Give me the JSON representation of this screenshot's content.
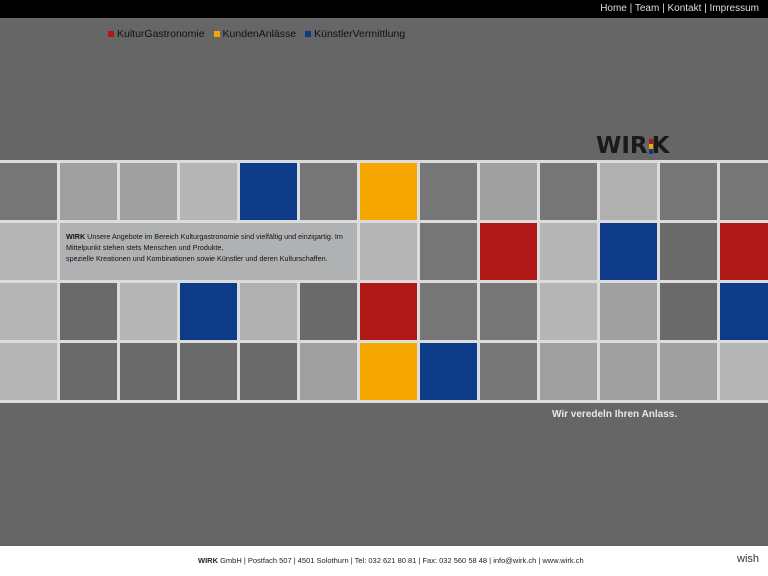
{
  "top_nav": {
    "items": [
      "Home",
      "Team",
      "Kontakt",
      "Impressum"
    ],
    "separator": " | "
  },
  "categories": [
    {
      "label": "KulturGastronomie",
      "color": "#b01818"
    },
    {
      "label": "KundenAnlässe",
      "color": "#f5a700"
    },
    {
      "label": "KünstlerVermittlung",
      "color": "#0d3b87"
    }
  ],
  "logo": {
    "text": "WIRK",
    "mark_colors": [
      "#b01818",
      "#f5a700",
      "#0d3b87"
    ]
  },
  "intro": {
    "brand": "WIRK",
    "line1": " Unsere Angebote im Bereich Kulturgastronomie sind vielfältig und einzigartig. Im Mittelpunkt stehen stets Menschen und Produkte,",
    "line2": "spezielle Kreationen und Kombinationen sowie Künstler und deren Kulturschaffen."
  },
  "tile_grid": [
    [
      "#767676",
      "#a0a0a0",
      "#a0a0a0",
      "#b5b5b5",
      "#0d3b87",
      "#767676",
      "#f5a700",
      "#767676",
      "#a0a0a0",
      "#767676",
      "#b0b0b0",
      "#767676",
      "#767676"
    ],
    [
      "#b5b5b5",
      null,
      null,
      null,
      null,
      null,
      "#b5b5b5",
      "#767676",
      "#b01818",
      "#b5b5b5",
      "#0d3b87",
      "#6a6a6a",
      "#b01818"
    ],
    [
      "#b5b5b5",
      "#6a6a6a",
      "#b5b5b5",
      "#0d3b87",
      "#b0b0b0",
      "#6a6a6a",
      "#b01818",
      "#767676",
      "#767676",
      "#b5b5b5",
      "#a0a0a0",
      "#6a6a6a",
      "#0d3b87"
    ],
    [
      "#b5b5b5",
      "#6a6a6a",
      "#6a6a6a",
      "#6a6a6a",
      "#6a6a6a",
      "#a0a0a0",
      "#f5a700",
      "#0d3b87",
      "#767676",
      "#a0a0a0",
      "#a0a0a0",
      "#a0a0a0",
      "#b5b5b5"
    ]
  ],
  "slogan": "Wir veredeln Ihren Anlass.",
  "footer": {
    "brand": "WIRK",
    "text": " GmbH | Postfach 507 | 4501 Solothurn | Tel: 032 621 80 81 | Fax: 032 560 58 48 | info@wirk.ch | www.wirk.ch",
    "credit": "wish"
  }
}
